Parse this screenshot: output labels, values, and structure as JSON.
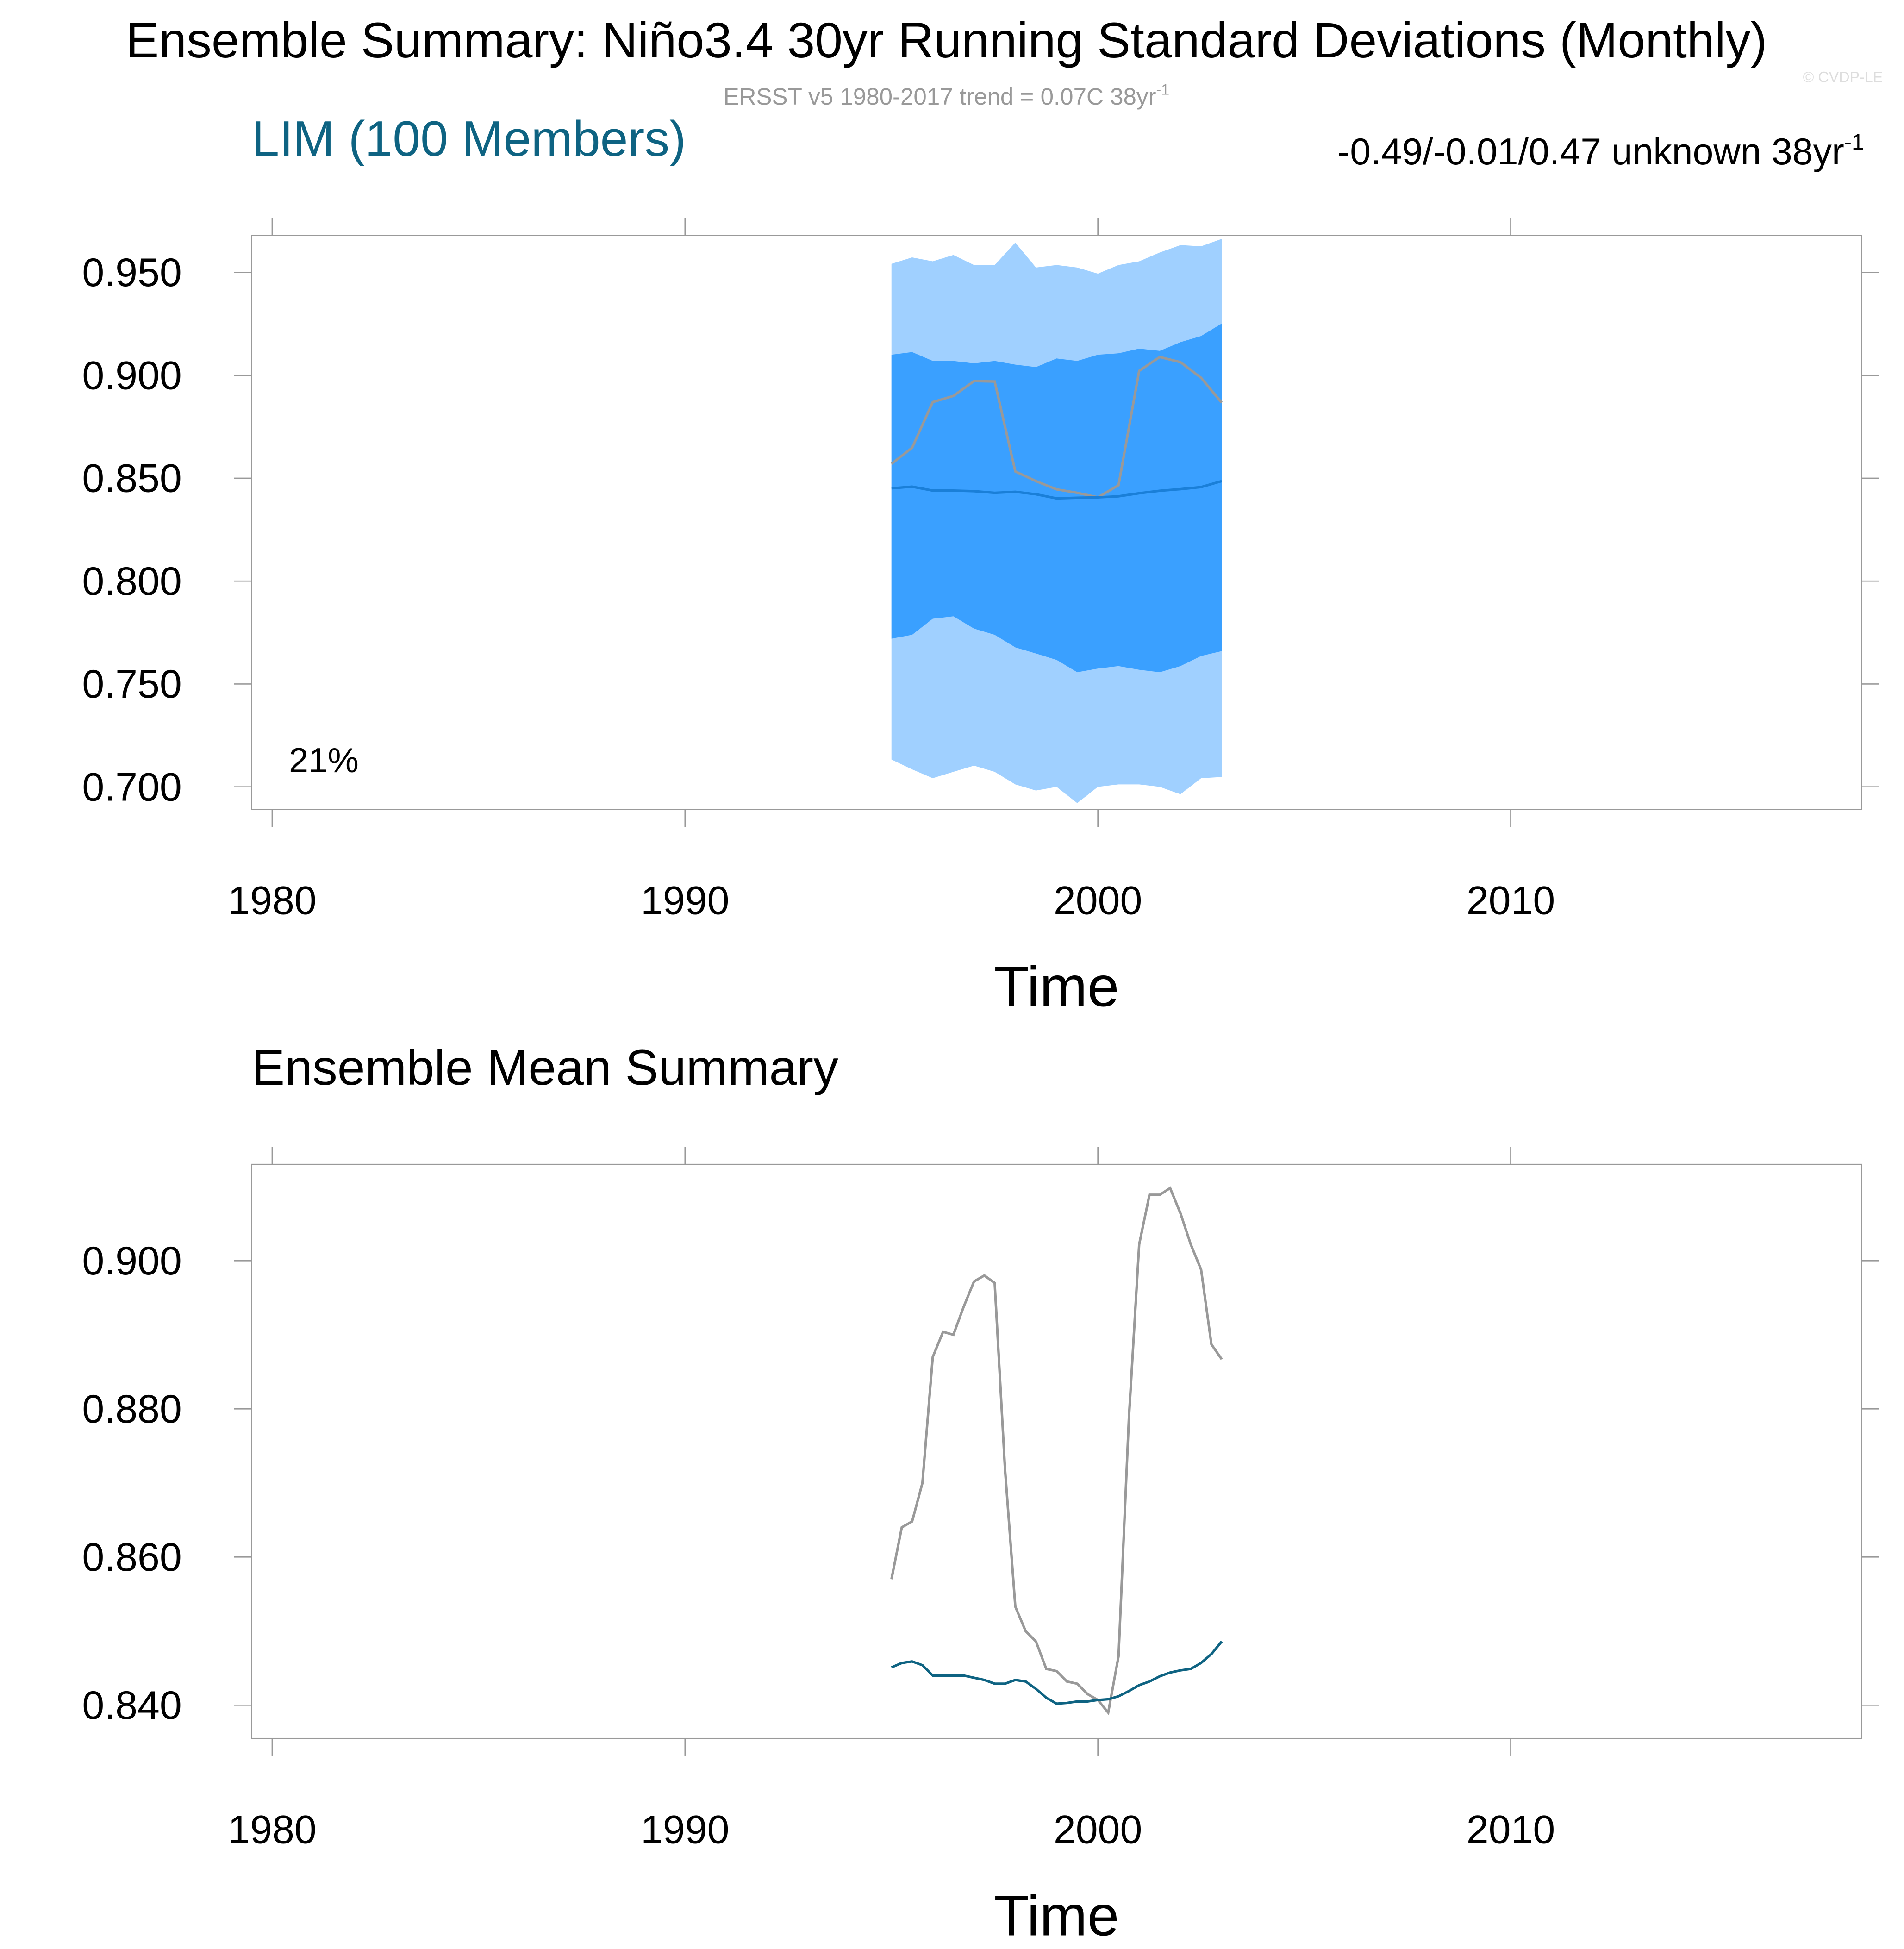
{
  "title": "Ensemble Summary: Niño3.4 30yr Running Standard Deviations (Monthly)",
  "subtitle": {
    "text": "ERSST v5 1980-2017 trend = 0.07C 38yr",
    "sup": "-1"
  },
  "credit": "© CVDP-LE",
  "chart_data": [
    {
      "type": "line",
      "title": "LIM (100 Members)",
      "title_right": {
        "text": "-0.49/-0.01/0.47 unknown 38yr",
        "sup": "-1"
      },
      "annotation": "21%",
      "xlabel": "Time",
      "x": [
        1995,
        1995.5,
        1996,
        1996.5,
        1997,
        1997.5,
        1998,
        1998.5,
        1999,
        1999.5,
        2000,
        2000.5,
        2001,
        2001.5,
        2002,
        2002.5,
        2003
      ],
      "xlim": [
        1979.5,
        2018.5
      ],
      "xticks": [
        1980,
        1990,
        2000,
        2010
      ],
      "ylim": [
        0.689,
        0.968
      ],
      "yticks": [
        {
          "value": 0.7,
          "label": "0.700"
        },
        {
          "value": 0.75,
          "label": "0.750"
        },
        {
          "value": 0.8,
          "label": "0.800"
        },
        {
          "value": 0.85,
          "label": "0.850"
        },
        {
          "value": 0.9,
          "label": "0.900"
        },
        {
          "value": 0.95,
          "label": "0.950"
        }
      ],
      "bands": [
        {
          "color": "#a0d0ff",
          "lower": [
            0.7133,
            0.7085,
            0.7042,
            0.7073,
            0.7103,
            0.7073,
            0.7012,
            0.6982,
            0.7,
            0.6921,
            0.7,
            0.7012,
            0.7012,
            0.7,
            0.6964,
            0.7042,
            0.7048
          ],
          "upper": [
            0.9542,
            0.9573,
            0.9554,
            0.9585,
            0.9536,
            0.9536,
            0.9645,
            0.9524,
            0.9536,
            0.9524,
            0.9494,
            0.9536,
            0.9554,
            0.9597,
            0.9633,
            0.9627,
            0.9663
          ]
        },
        {
          "color": "#3aa0ff",
          "lower": [
            0.772,
            0.7739,
            0.7817,
            0.7829,
            0.7769,
            0.7739,
            0.7678,
            0.7648,
            0.7617,
            0.7557,
            0.7575,
            0.7587,
            0.7569,
            0.7557,
            0.7587,
            0.7636,
            0.766
          ],
          "upper": [
            0.91,
            0.9113,
            0.907,
            0.907,
            0.9058,
            0.907,
            0.9052,
            0.904,
            0.9082,
            0.907,
            0.91,
            0.9107,
            0.913,
            0.9119,
            0.9161,
            0.9191,
            0.9252
          ]
        }
      ],
      "series": [
        {
          "color": "#999999",
          "values": [
            0.857,
            0.8648,
            0.887,
            0.89,
            0.8972,
            0.897,
            0.8533,
            0.8486,
            0.8446,
            0.8429,
            0.8407,
            0.8466,
            0.9022,
            0.9089,
            0.9064,
            0.8988,
            0.8867
          ]
        },
        {
          "color": "#1a7fd8",
          "values": [
            0.8451,
            0.8459,
            0.844,
            0.844,
            0.8437,
            0.8429,
            0.8434,
            0.8422,
            0.8402,
            0.8405,
            0.8407,
            0.8412,
            0.8427,
            0.8439,
            0.8447,
            0.8457,
            0.8486
          ]
        }
      ]
    },
    {
      "type": "line",
      "title": "Ensemble Mean Summary",
      "xlabel": "Time",
      "x": [
        1995,
        1995.25,
        1995.5,
        1995.75,
        1996,
        1996.25,
        1996.5,
        1996.75,
        1997,
        1997.25,
        1997.5,
        1997.75,
        1998,
        1998.25,
        1998.5,
        1998.75,
        1999,
        1999.25,
        1999.5,
        1999.75,
        2000,
        2000.25,
        2000.5,
        2000.75,
        2001,
        2001.25,
        2001.5,
        2001.75,
        2002,
        2002.25,
        2002.5,
        2002.75,
        2003
      ],
      "xlim": [
        1979.5,
        2018.5
      ],
      "xticks": [
        1980,
        1990,
        2000,
        2010
      ],
      "ylim": [
        0.8355,
        0.913
      ],
      "yticks": [
        {
          "value": 0.84,
          "label": "0.840"
        },
        {
          "value": 0.86,
          "label": "0.860"
        },
        {
          "value": 0.88,
          "label": "0.880"
        },
        {
          "value": 0.9,
          "label": "0.900"
        }
      ],
      "series": [
        {
          "color": "#999999",
          "values": [
            0.857,
            0.864,
            0.8648,
            0.87,
            0.887,
            0.8904,
            0.89,
            0.8938,
            0.8972,
            0.898,
            0.897,
            0.8719,
            0.8533,
            0.85,
            0.8486,
            0.8449,
            0.8446,
            0.8432,
            0.8429,
            0.8415,
            0.8407,
            0.839,
            0.8466,
            0.8786,
            0.9022,
            0.9089,
            0.9089,
            0.9098,
            0.9064,
            0.9022,
            0.8988,
            0.8887,
            0.8867
          ]
        },
        {
          "color": "#0e6382",
          "values": [
            0.8451,
            0.8457,
            0.8459,
            0.8454,
            0.844,
            0.844,
            0.844,
            0.844,
            0.8437,
            0.8434,
            0.8429,
            0.8429,
            0.8434,
            0.8432,
            0.8422,
            0.841,
            0.8402,
            0.8403,
            0.8405,
            0.8405,
            0.8407,
            0.8408,
            0.8412,
            0.8419,
            0.8427,
            0.8432,
            0.8439,
            0.8444,
            0.8447,
            0.8449,
            0.8457,
            0.8469,
            0.8486
          ]
        }
      ]
    }
  ]
}
